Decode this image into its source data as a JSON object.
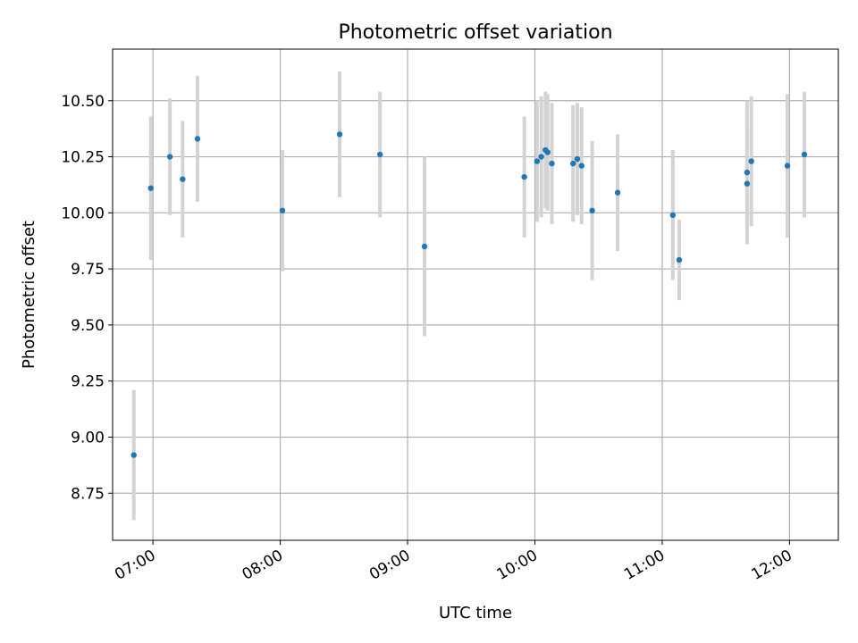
{
  "chart_data": {
    "type": "scatter",
    "title": "Photometric offset variation",
    "xlabel": "UTC time",
    "ylabel": "Photometric offset",
    "x_ticks": [
      "07:00",
      "08:00",
      "09:00",
      "10:00",
      "11:00",
      "12:00"
    ],
    "y_ticks": [
      "8.75",
      "9.00",
      "9.25",
      "9.50",
      "9.75",
      "10.00",
      "10.25",
      "10.50"
    ],
    "xlim": [
      "06:41",
      "12:23"
    ],
    "ylim": [
      8.54,
      10.73
    ],
    "grid": true,
    "legend": "none",
    "marker_color": "#1f77b4",
    "errorbar_color": "#d3d3d3",
    "series": [
      {
        "points": [
          {
            "x": "06:51",
            "y": 8.92,
            "err": 0.29
          },
          {
            "x": "06:59",
            "y": 10.11,
            "err": 0.32
          },
          {
            "x": "07:08",
            "y": 10.25,
            "err": 0.26
          },
          {
            "x": "07:14",
            "y": 10.15,
            "err": 0.26
          },
          {
            "x": "07:21",
            "y": 10.33,
            "err": 0.28
          },
          {
            "x": "08:01",
            "y": 10.01,
            "err": 0.27
          },
          {
            "x": "08:28",
            "y": 10.35,
            "err": 0.28
          },
          {
            "x": "08:47",
            "y": 10.26,
            "err": 0.28
          },
          {
            "x": "09:08",
            "y": 9.85,
            "err": 0.4
          },
          {
            "x": "09:55",
            "y": 10.16,
            "err": 0.27
          },
          {
            "x": "10:01",
            "y": 10.23,
            "err": 0.27
          },
          {
            "x": "10:03",
            "y": 10.25,
            "err": 0.27
          },
          {
            "x": "10:05",
            "y": 10.28,
            "err": 0.26
          },
          {
            "x": "10:06",
            "y": 10.27,
            "err": 0.26
          },
          {
            "x": "10:08",
            "y": 10.22,
            "err": 0.27
          },
          {
            "x": "10:18",
            "y": 10.22,
            "err": 0.26
          },
          {
            "x": "10:20",
            "y": 10.24,
            "err": 0.25
          },
          {
            "x": "10:22",
            "y": 10.21,
            "err": 0.26
          },
          {
            "x": "10:27",
            "y": 10.01,
            "err": 0.31
          },
          {
            "x": "10:39",
            "y": 10.09,
            "err": 0.26
          },
          {
            "x": "11:05",
            "y": 9.99,
            "err": 0.29
          },
          {
            "x": "11:08",
            "y": 9.79,
            "err": 0.18
          },
          {
            "x": "11:40",
            "y": 10.13,
            "err": 0.27
          },
          {
            "x": "11:40",
            "y": 10.18,
            "err": 0.32
          },
          {
            "x": "11:42",
            "y": 10.23,
            "err": 0.29
          },
          {
            "x": "11:59",
            "y": 10.21,
            "err": 0.32
          },
          {
            "x": "12:07",
            "y": 10.26,
            "err": 0.28
          }
        ]
      }
    ]
  }
}
